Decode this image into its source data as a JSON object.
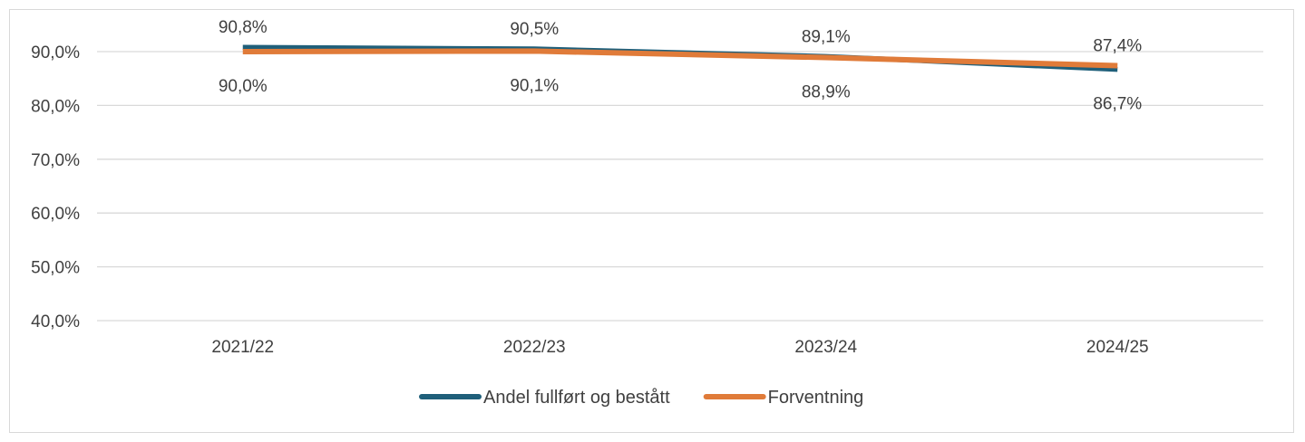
{
  "chart_data": {
    "type": "line",
    "categories": [
      "2021/22",
      "2022/23",
      "2023/24",
      "2024/25"
    ],
    "series": [
      {
        "name": "Andel fullført og bestått",
        "values": [
          90.8,
          90.5,
          89.1,
          86.7
        ],
        "labels": [
          "90,8%",
          "90,5%",
          "89,1%",
          "86,7%"
        ],
        "color": "#1f5f7a"
      },
      {
        "name": "Forventning",
        "values": [
          90.0,
          90.1,
          88.9,
          87.4
        ],
        "labels": [
          "90,0%",
          "90,1%",
          "88,9%",
          "87,4%"
        ],
        "color": "#e07b39"
      }
    ],
    "y_ticks": [
      40,
      50,
      60,
      70,
      80,
      90
    ],
    "y_tick_labels": [
      "40,0%",
      "50,0%",
      "60,0%",
      "70,0%",
      "80,0%",
      "90,0%"
    ],
    "ylim": [
      40,
      90
    ],
    "grid": true,
    "legend_position": "bottom",
    "title": "",
    "xlabel": "",
    "ylabel": ""
  }
}
